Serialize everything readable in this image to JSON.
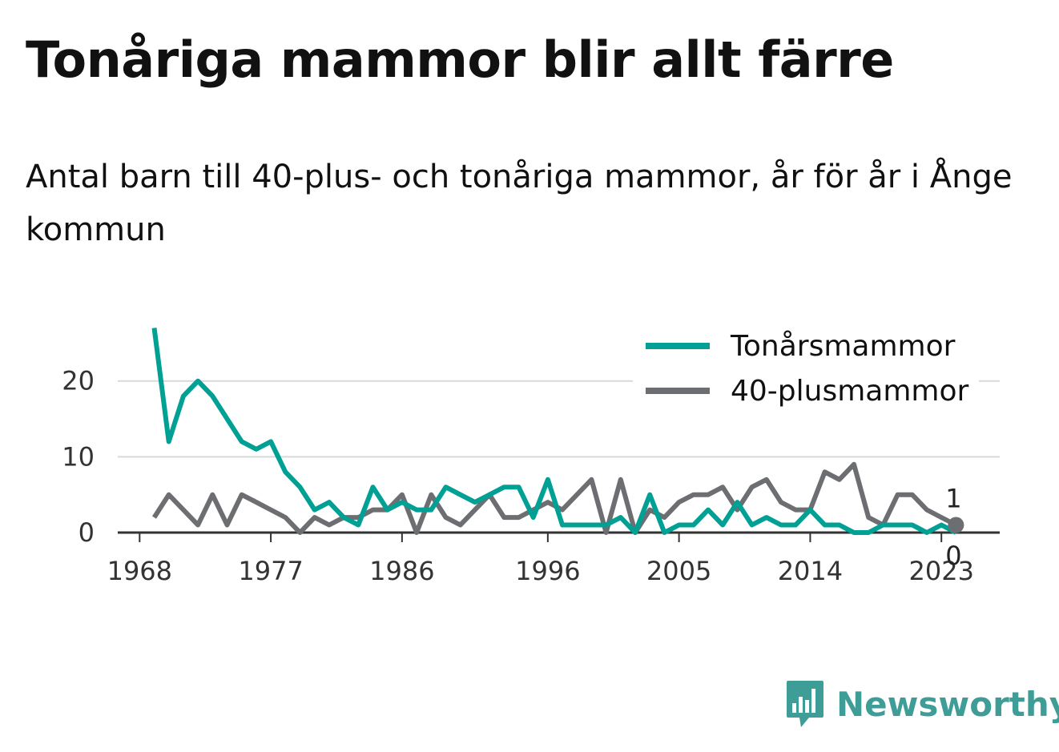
{
  "header": {
    "title": "Tonåriga mammor blir allt färre",
    "subtitle": "Antal barn till 40-plus- och tonåriga mammor, år för år i Ånge kommun"
  },
  "brand": {
    "name": "Newsworthy",
    "icon": "bar-chart-speech-bubble-icon",
    "color": "#3f9d98"
  },
  "chart_data": {
    "type": "line",
    "x": [
      1969,
      1970,
      1971,
      1972,
      1973,
      1974,
      1975,
      1976,
      1977,
      1978,
      1979,
      1980,
      1981,
      1982,
      1983,
      1984,
      1985,
      1986,
      1987,
      1988,
      1989,
      1990,
      1991,
      1992,
      1993,
      1994,
      1995,
      1996,
      1997,
      1998,
      1999,
      2000,
      2001,
      2002,
      2003,
      2004,
      2005,
      2006,
      2007,
      2008,
      2009,
      2010,
      2011,
      2012,
      2013,
      2014,
      2015,
      2016,
      2017,
      2018,
      2019,
      2020,
      2021,
      2022,
      2023,
      2024
    ],
    "series": [
      {
        "name": "Tonårsmammor",
        "color": "#00a094",
        "values": [
          27,
          12,
          18,
          20,
          18,
          15,
          12,
          11,
          12,
          8,
          6,
          3,
          4,
          2,
          1,
          6,
          3,
          4,
          3,
          3,
          6,
          5,
          4,
          5,
          6,
          6,
          2,
          7,
          1,
          1,
          1,
          1,
          2,
          0,
          5,
          0,
          1,
          1,
          3,
          1,
          4,
          1,
          2,
          1,
          1,
          3,
          1,
          1,
          0,
          0,
          1,
          1,
          1,
          0,
          1,
          0
        ]
      },
      {
        "name": "40-plusmammor",
        "color": "#6d6e72",
        "values": [
          2,
          5,
          3,
          1,
          5,
          1,
          5,
          4,
          3,
          2,
          0,
          2,
          1,
          2,
          2,
          3,
          3,
          5,
          0,
          5,
          2,
          1,
          3,
          5,
          2,
          2,
          3,
          4,
          3,
          5,
          7,
          0,
          7,
          0,
          3,
          2,
          4,
          5,
          5,
          6,
          3,
          6,
          7,
          4,
          3,
          3,
          8,
          7,
          9,
          2,
          1,
          5,
          5,
          3,
          2,
          1
        ]
      }
    ],
    "x_ticks": [
      1968,
      1977,
      1986,
      1996,
      2005,
      2014,
      2023
    ],
    "x_range": [
      1966.5,
      2027
    ],
    "y_ticks": [
      0,
      10,
      20
    ],
    "y_range": [
      0,
      28
    ],
    "grid": true,
    "legend": "top-right",
    "end_labels": [
      {
        "series": "40-plusmammor",
        "value": "1"
      },
      {
        "series": "Tonårsmammor",
        "value": "0"
      }
    ]
  }
}
